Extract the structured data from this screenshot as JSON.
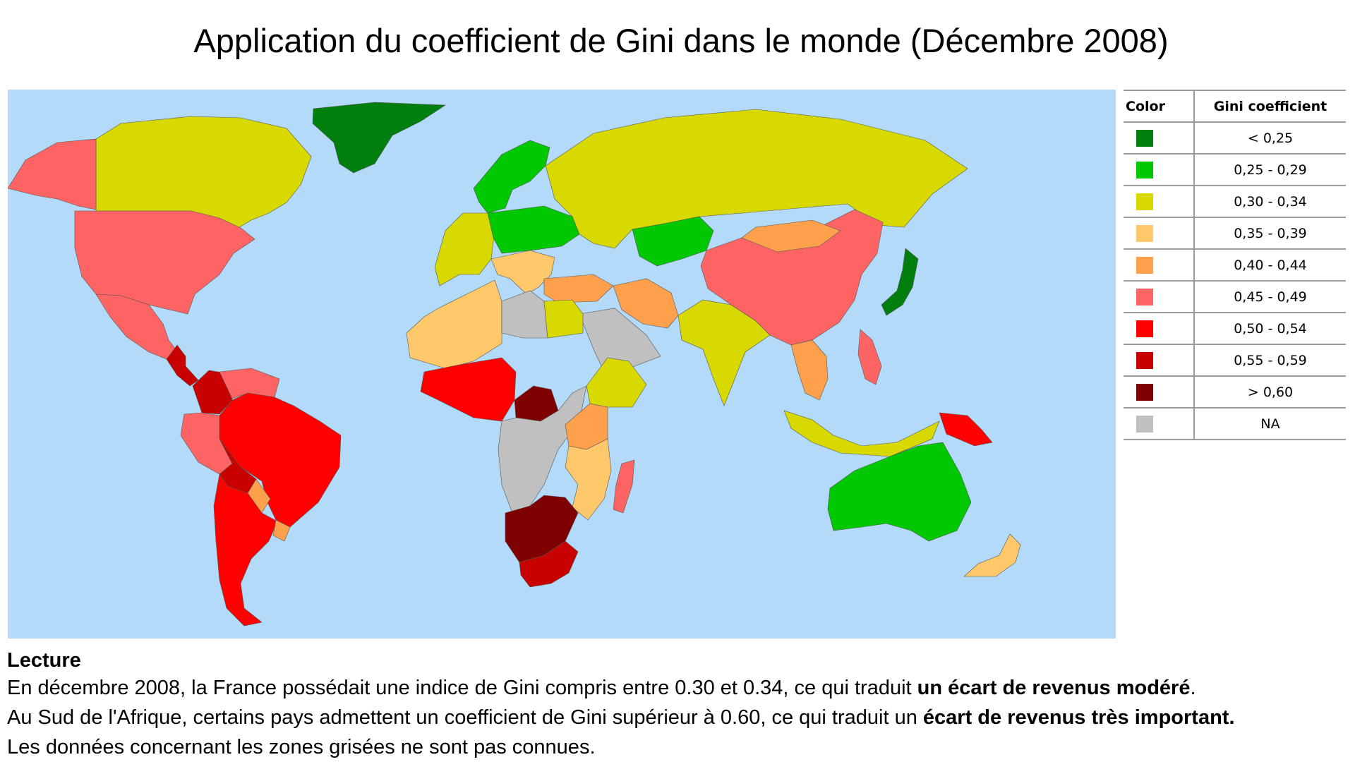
{
  "title": "Application du coefficient de Gini dans le monde (Décembre 2008)",
  "map": {
    "ocean_color": "#b3daf8",
    "classes": {
      "c1": {
        "range": "< 0,25",
        "color": "#007f0e"
      },
      "c2": {
        "range": "0,25 - 0,29",
        "color": "#00c800"
      },
      "c3": {
        "range": "0,30 - 0,34",
        "color": "#d7d900"
      },
      "c4": {
        "range": "0,35 - 0,39",
        "color": "#ffc86b"
      },
      "c5": {
        "range": "0,40 - 0,44",
        "color": "#ffa04d"
      },
      "c6": {
        "range": "0,45 - 0,49",
        "color": "#ff6464"
      },
      "c7": {
        "range": "0,50 - 0,54",
        "color": "#ff0000"
      },
      "c8": {
        "range": "0,55 - 0,59",
        "color": "#c80000"
      },
      "c9": {
        "range": "> 0,60",
        "color": "#7f0000"
      },
      "na": {
        "range": "NA",
        "color": "#c0c0c0"
      }
    },
    "regions": [
      {
        "name": "Greenland",
        "class": "c1"
      },
      {
        "name": "Canada",
        "class": "c3"
      },
      {
        "name": "Alaska",
        "class": "c6"
      },
      {
        "name": "United States",
        "class": "c6"
      },
      {
        "name": "Mexico",
        "class": "c6"
      },
      {
        "name": "Central America",
        "class": "c8"
      },
      {
        "name": "Colombia",
        "class": "c8"
      },
      {
        "name": "Venezuela",
        "class": "c6"
      },
      {
        "name": "Brazil",
        "class": "c7"
      },
      {
        "name": "Peru",
        "class": "c6"
      },
      {
        "name": "Bolivia",
        "class": "c8"
      },
      {
        "name": "Paraguay",
        "class": "c5"
      },
      {
        "name": "Argentina",
        "class": "c7"
      },
      {
        "name": "Uruguay",
        "class": "c5"
      },
      {
        "name": "Scandinavia",
        "class": "c2"
      },
      {
        "name": "Western Europe",
        "class": "c3"
      },
      {
        "name": "Central Europe",
        "class": "c2"
      },
      {
        "name": "Southern Europe",
        "class": "c4"
      },
      {
        "name": "Russia",
        "class": "c3"
      },
      {
        "name": "Turkey",
        "class": "c5"
      },
      {
        "name": "Iran",
        "class": "c5"
      },
      {
        "name": "Central Asia",
        "class": "c2"
      },
      {
        "name": "Arabia",
        "class": "na"
      },
      {
        "name": "India",
        "class": "c3"
      },
      {
        "name": "China",
        "class": "c6"
      },
      {
        "name": "Mongolia",
        "class": "c5"
      },
      {
        "name": "Japan",
        "class": "c1"
      },
      {
        "name": "Southeast Asia",
        "class": "c5"
      },
      {
        "name": "Indonesia",
        "class": "c3"
      },
      {
        "name": "Philippines",
        "class": "c6"
      },
      {
        "name": "Papua New Guinea",
        "class": "c7"
      },
      {
        "name": "Australia",
        "class": "c2"
      },
      {
        "name": "New Zealand",
        "class": "c4"
      },
      {
        "name": "Northwest Africa",
        "class": "c4"
      },
      {
        "name": "Libya",
        "class": "na"
      },
      {
        "name": "Egypt",
        "class": "c3"
      },
      {
        "name": "Sahel",
        "class": "c7"
      },
      {
        "name": "Central African Republic",
        "class": "c9"
      },
      {
        "name": "Central Africa",
        "class": "na"
      },
      {
        "name": "Ethiopia",
        "class": "c3"
      },
      {
        "name": "East Africa",
        "class": "c5"
      },
      {
        "name": "Tanzania",
        "class": "c4"
      },
      {
        "name": "Southern Africa",
        "class": "c9"
      },
      {
        "name": "South Africa",
        "class": "c8"
      },
      {
        "name": "Madagascar",
        "class": "c6"
      }
    ]
  },
  "legend": {
    "col_color": "Color",
    "col_gini": "Gini coefficient",
    "rows": [
      {
        "range": "< 0,25",
        "color": "#007f0e"
      },
      {
        "range": "0,25 - 0,29",
        "color": "#00c800"
      },
      {
        "range": "0,30 - 0,34",
        "color": "#d7d900"
      },
      {
        "range": "0,35 - 0,39",
        "color": "#ffc86b"
      },
      {
        "range": "0,40 - 0,44",
        "color": "#ffa04d"
      },
      {
        "range": "0,45 - 0,49",
        "color": "#ff6464"
      },
      {
        "range": "0,50 - 0,54",
        "color": "#ff0000"
      },
      {
        "range": "0,55 - 0,59",
        "color": "#c80000"
      },
      {
        "range": "> 0,60",
        "color": "#7f0000"
      },
      {
        "range": "NA",
        "color": "#c0c0c0"
      }
    ]
  },
  "caption": {
    "heading": "Lecture",
    "line1": "En décembre 2008, la France possédait une indice de Gini compris entre 0.30 et 0.34, ce qui traduit ",
    "line1_bold": "un écart de revenus modéré",
    "line1_end": ".",
    "line2": "Au Sud de l'Afrique, certains pays admettent un coefficient de Gini supérieur à 0.60, ce qui traduit un ",
    "line2_bold": "écart de revenus très important.",
    "line3": "Les données concernant les zones grisées ne sont pas connues."
  }
}
